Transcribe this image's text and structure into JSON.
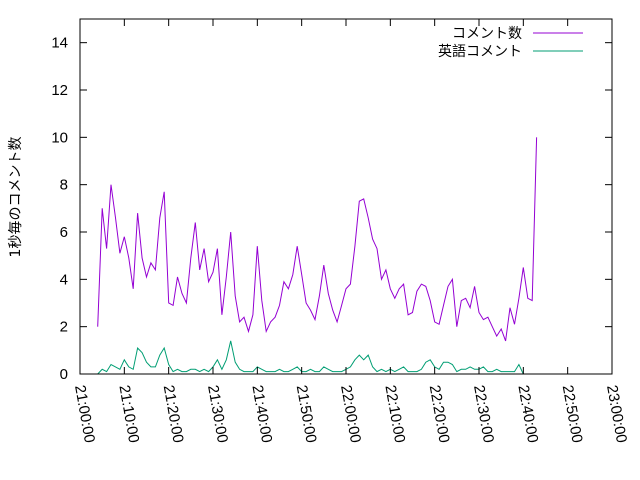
{
  "chart_data": {
    "type": "line",
    "title": "",
    "xlabel": "",
    "ylabel": "1秒毎のコメント数",
    "xlim": [
      "21:00:00",
      "23:00:00"
    ],
    "ylim": [
      0,
      15
    ],
    "x_ticks": [
      "21:00:00",
      "21:10:00",
      "21:20:00",
      "21:30:00",
      "21:40:00",
      "21:50:00",
      "22:00:00",
      "22:10:00",
      "22:20:00",
      "22:30:00",
      "22:40:00",
      "22:50:00",
      "23:00:00"
    ],
    "y_ticks": [
      "0",
      "2",
      "4",
      "6",
      "8",
      "10",
      "12",
      "14"
    ],
    "legend_position": "top-right",
    "series": [
      {
        "name": "コメント数",
        "color": "#9400d3",
        "points": [
          [
            "21:04:00",
            2.0
          ],
          [
            "21:05:00",
            7.0
          ],
          [
            "21:06:00",
            5.3
          ],
          [
            "21:07:00",
            8.0
          ],
          [
            "21:08:00",
            6.6
          ],
          [
            "21:09:00",
            5.1
          ],
          [
            "21:10:00",
            5.8
          ],
          [
            "21:11:00",
            4.9
          ],
          [
            "21:12:00",
            3.6
          ],
          [
            "21:13:00",
            6.8
          ],
          [
            "21:14:00",
            4.9
          ],
          [
            "21:15:00",
            4.1
          ],
          [
            "21:16:00",
            4.7
          ],
          [
            "21:17:00",
            4.4
          ],
          [
            "21:18:00",
            6.6
          ],
          [
            "21:19:00",
            7.7
          ],
          [
            "21:20:00",
            3.0
          ],
          [
            "21:21:00",
            2.9
          ],
          [
            "21:22:00",
            4.1
          ],
          [
            "21:23:00",
            3.4
          ],
          [
            "21:24:00",
            3.0
          ],
          [
            "21:25:00",
            4.9
          ],
          [
            "21:26:00",
            6.4
          ],
          [
            "21:27:00",
            4.4
          ],
          [
            "21:28:00",
            5.3
          ],
          [
            "21:29:00",
            3.9
          ],
          [
            "21:30:00",
            4.3
          ],
          [
            "21:31:00",
            5.3
          ],
          [
            "21:32:00",
            2.5
          ],
          [
            "21:33:00",
            4.1
          ],
          [
            "21:34:00",
            6.0
          ],
          [
            "21:35:00",
            3.3
          ],
          [
            "21:36:00",
            2.2
          ],
          [
            "21:37:00",
            2.4
          ],
          [
            "21:38:00",
            1.8
          ],
          [
            "21:39:00",
            2.5
          ],
          [
            "21:40:00",
            5.4
          ],
          [
            "21:41:00",
            3.1
          ],
          [
            "21:42:00",
            1.8
          ],
          [
            "21:43:00",
            2.2
          ],
          [
            "21:44:00",
            2.4
          ],
          [
            "21:45:00",
            2.9
          ],
          [
            "21:46:00",
            3.9
          ],
          [
            "21:47:00",
            3.6
          ],
          [
            "21:48:00",
            4.2
          ],
          [
            "21:49:00",
            5.4
          ],
          [
            "21:50:00",
            4.2
          ],
          [
            "21:51:00",
            3.0
          ],
          [
            "21:52:00",
            2.7
          ],
          [
            "21:53:00",
            2.3
          ],
          [
            "21:54:00",
            3.3
          ],
          [
            "21:55:00",
            4.6
          ],
          [
            "21:56:00",
            3.4
          ],
          [
            "21:57:00",
            2.7
          ],
          [
            "21:58:00",
            2.2
          ],
          [
            "21:59:00",
            2.9
          ],
          [
            "22:00:00",
            3.6
          ],
          [
            "22:01:00",
            3.8
          ],
          [
            "22:02:00",
            5.4
          ],
          [
            "22:03:00",
            7.3
          ],
          [
            "22:04:00",
            7.4
          ],
          [
            "22:05:00",
            6.6
          ],
          [
            "22:06:00",
            5.7
          ],
          [
            "22:07:00",
            5.3
          ],
          [
            "22:08:00",
            4.0
          ],
          [
            "22:09:00",
            4.4
          ],
          [
            "22:10:00",
            3.6
          ],
          [
            "22:11:00",
            3.2
          ],
          [
            "22:12:00",
            3.6
          ],
          [
            "22:13:00",
            3.8
          ],
          [
            "22:14:00",
            2.5
          ],
          [
            "22:15:00",
            2.6
          ],
          [
            "22:16:00",
            3.5
          ],
          [
            "22:17:00",
            3.8
          ],
          [
            "22:18:00",
            3.7
          ],
          [
            "22:19:00",
            3.1
          ],
          [
            "22:20:00",
            2.2
          ],
          [
            "22:21:00",
            2.1
          ],
          [
            "22:22:00",
            2.9
          ],
          [
            "22:23:00",
            3.7
          ],
          [
            "22:24:00",
            4.0
          ],
          [
            "22:25:00",
            2.0
          ],
          [
            "22:26:00",
            3.1
          ],
          [
            "22:27:00",
            3.2
          ],
          [
            "22:28:00",
            2.8
          ],
          [
            "22:29:00",
            3.7
          ],
          [
            "22:30:00",
            2.6
          ],
          [
            "22:31:00",
            2.3
          ],
          [
            "22:32:00",
            2.4
          ],
          [
            "22:33:00",
            2.0
          ],
          [
            "22:34:00",
            1.6
          ],
          [
            "22:35:00",
            1.9
          ],
          [
            "22:36:00",
            1.4
          ],
          [
            "22:37:00",
            2.8
          ],
          [
            "22:38:00",
            2.1
          ],
          [
            "22:39:00",
            3.2
          ],
          [
            "22:40:00",
            4.5
          ],
          [
            "22:41:00",
            3.2
          ],
          [
            "22:42:00",
            3.1
          ],
          [
            "22:43:00",
            10.0
          ]
        ]
      },
      {
        "name": "英語コメント",
        "color": "#009e73",
        "points": [
          [
            "21:04:00",
            0.0
          ],
          [
            "21:05:00",
            0.2
          ],
          [
            "21:06:00",
            0.1
          ],
          [
            "21:07:00",
            0.4
          ],
          [
            "21:08:00",
            0.3
          ],
          [
            "21:09:00",
            0.2
          ],
          [
            "21:10:00",
            0.6
          ],
          [
            "21:11:00",
            0.3
          ],
          [
            "21:12:00",
            0.2
          ],
          [
            "21:13:00",
            1.1
          ],
          [
            "21:14:00",
            0.9
          ],
          [
            "21:15:00",
            0.5
          ],
          [
            "21:16:00",
            0.3
          ],
          [
            "21:17:00",
            0.3
          ],
          [
            "21:18:00",
            0.8
          ],
          [
            "21:19:00",
            1.1
          ],
          [
            "21:20:00",
            0.4
          ],
          [
            "21:21:00",
            0.1
          ],
          [
            "21:22:00",
            0.2
          ],
          [
            "21:23:00",
            0.1
          ],
          [
            "21:24:00",
            0.1
          ],
          [
            "21:25:00",
            0.2
          ],
          [
            "21:26:00",
            0.2
          ],
          [
            "21:27:00",
            0.1
          ],
          [
            "21:28:00",
            0.2
          ],
          [
            "21:29:00",
            0.1
          ],
          [
            "21:30:00",
            0.3
          ],
          [
            "21:31:00",
            0.6
          ],
          [
            "21:32:00",
            0.2
          ],
          [
            "21:33:00",
            0.6
          ],
          [
            "21:34:00",
            1.4
          ],
          [
            "21:35:00",
            0.5
          ],
          [
            "21:36:00",
            0.2
          ],
          [
            "21:37:00",
            0.1
          ],
          [
            "21:38:00",
            0.1
          ],
          [
            "21:39:00",
            0.1
          ],
          [
            "21:40:00",
            0.3
          ],
          [
            "21:41:00",
            0.2
          ],
          [
            "21:42:00",
            0.1
          ],
          [
            "21:43:00",
            0.1
          ],
          [
            "21:44:00",
            0.1
          ],
          [
            "21:45:00",
            0.2
          ],
          [
            "21:46:00",
            0.1
          ],
          [
            "21:47:00",
            0.1
          ],
          [
            "21:48:00",
            0.2
          ],
          [
            "21:49:00",
            0.3
          ],
          [
            "21:50:00",
            0.1
          ],
          [
            "21:51:00",
            0.1
          ],
          [
            "21:52:00",
            0.2
          ],
          [
            "21:53:00",
            0.1
          ],
          [
            "21:54:00",
            0.1
          ],
          [
            "21:55:00",
            0.3
          ],
          [
            "21:56:00",
            0.2
          ],
          [
            "21:57:00",
            0.1
          ],
          [
            "21:58:00",
            0.1
          ],
          [
            "21:59:00",
            0.1
          ],
          [
            "22:00:00",
            0.2
          ],
          [
            "22:01:00",
            0.3
          ],
          [
            "22:02:00",
            0.6
          ],
          [
            "22:03:00",
            0.8
          ],
          [
            "22:04:00",
            0.6
          ],
          [
            "22:05:00",
            0.8
          ],
          [
            "22:06:00",
            0.3
          ],
          [
            "22:07:00",
            0.1
          ],
          [
            "22:08:00",
            0.2
          ],
          [
            "22:09:00",
            0.1
          ],
          [
            "22:10:00",
            0.2
          ],
          [
            "22:11:00",
            0.1
          ],
          [
            "22:12:00",
            0.2
          ],
          [
            "22:13:00",
            0.3
          ],
          [
            "22:14:00",
            0.1
          ],
          [
            "22:15:00",
            0.1
          ],
          [
            "22:16:00",
            0.1
          ],
          [
            "22:17:00",
            0.2
          ],
          [
            "22:18:00",
            0.5
          ],
          [
            "22:19:00",
            0.6
          ],
          [
            "22:20:00",
            0.3
          ],
          [
            "22:21:00",
            0.2
          ],
          [
            "22:22:00",
            0.5
          ],
          [
            "22:23:00",
            0.5
          ],
          [
            "22:24:00",
            0.4
          ],
          [
            "22:25:00",
            0.1
          ],
          [
            "22:26:00",
            0.2
          ],
          [
            "22:27:00",
            0.2
          ],
          [
            "22:28:00",
            0.3
          ],
          [
            "22:29:00",
            0.2
          ],
          [
            "22:30:00",
            0.2
          ],
          [
            "22:31:00",
            0.3
          ],
          [
            "22:32:00",
            0.1
          ],
          [
            "22:33:00",
            0.1
          ],
          [
            "22:34:00",
            0.2
          ],
          [
            "22:35:00",
            0.1
          ],
          [
            "22:36:00",
            0.1
          ],
          [
            "22:37:00",
            0.1
          ],
          [
            "22:38:00",
            0.1
          ],
          [
            "22:39:00",
            0.4
          ],
          [
            "22:40:00",
            0.0
          ]
        ]
      }
    ]
  }
}
